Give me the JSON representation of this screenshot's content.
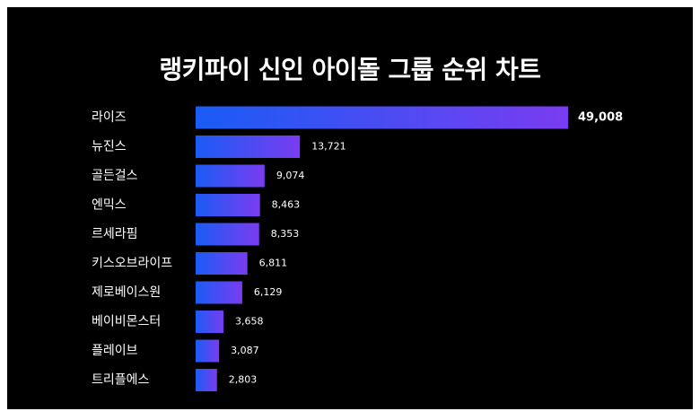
{
  "colors": {
    "background": "#000000",
    "bar_gradient_start": "#1a5cf5",
    "bar_gradient_end": "#7a3cf0",
    "text": "#ffffff"
  },
  "chart_data": {
    "type": "bar",
    "orientation": "horizontal",
    "title": "랭키파이 신인 아이돌 그룹 순위 차트",
    "categories": [
      "라이즈",
      "뉴진스",
      "골든걸스",
      "엔믹스",
      "르세라핌",
      "키스오브라이프",
      "제로베이스원",
      "베이비몬스터",
      "플레이브",
      "트리플에스"
    ],
    "value_labels": [
      "49,008",
      "13,721",
      "9,074",
      "8,463",
      "8,353",
      "6,811",
      "6,129",
      "3,658",
      "3,087",
      "2,803"
    ],
    "values": [
      49008,
      13721,
      9074,
      8463,
      8353,
      6811,
      6129,
      3658,
      3087,
      2803
    ],
    "xlabel": "",
    "ylabel": "",
    "xlim": [
      0,
      49008
    ],
    "grid": false,
    "legend": "none"
  }
}
